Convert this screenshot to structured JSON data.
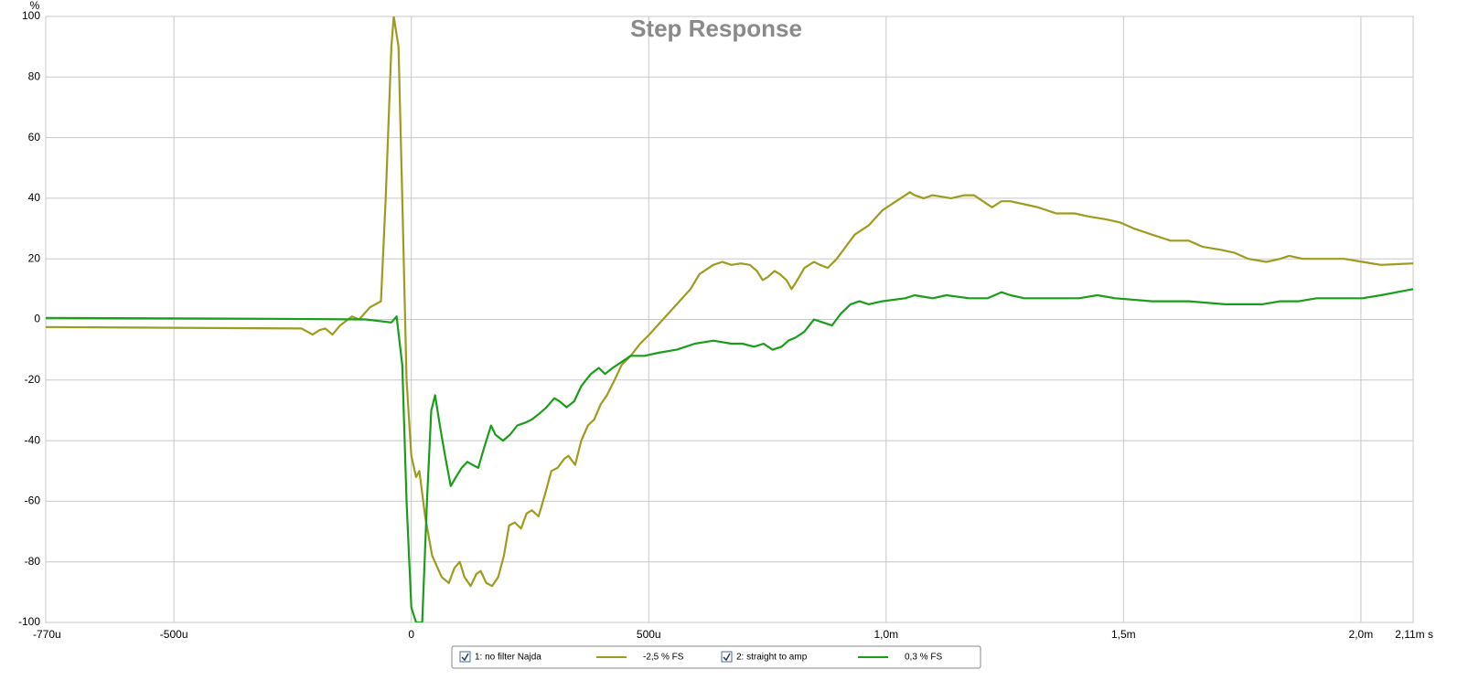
{
  "chart_data": {
    "type": "line",
    "title": "Step Response",
    "y_label": "%",
    "xlim": [
      -770,
      2110
    ],
    "xticks": [
      {
        "value": -770,
        "label": "-770u"
      },
      {
        "value": -500,
        "label": "-500u"
      },
      0,
      {
        "value": 500,
        "label": "500u"
      },
      {
        "value": 1000,
        "label": "1,0m"
      },
      {
        "value": 1500,
        "label": "1,5m"
      },
      {
        "value": 2000,
        "label": "2,0m"
      },
      {
        "value": 2110,
        "label": "2,11m s"
      }
    ],
    "ylim": [
      -100,
      100
    ],
    "yticks": [
      -100,
      -80,
      -60,
      -40,
      -20,
      0,
      20,
      40,
      60,
      80,
      100
    ],
    "grid": true,
    "series": [
      {
        "name": "1: no filter Najda",
        "level": "-2,5 % FS",
        "color": "#9c9c1e",
        "x": [
          -770,
          -231,
          -208,
          -193,
          -181,
          -166,
          -150,
          -125,
          -110,
          -87,
          -64,
          -54,
          -42,
          -37,
          -27,
          -19,
          -10,
          0,
          10,
          17,
          29,
          44,
          64,
          79,
          91,
          102,
          112,
          125,
          137,
          146,
          158,
          170,
          183,
          195,
          206,
          218,
          231,
          243,
          254,
          268,
          281,
          295,
          308,
          322,
          331,
          345,
          358,
          372,
          385,
          399,
          412,
          428,
          443,
          462,
          482,
          501,
          530,
          559,
          588,
          607,
          636,
          655,
          674,
          694,
          713,
          728,
          740,
          751,
          765,
          776,
          790,
          801,
          813,
          828,
          848,
          861,
          877,
          896,
          915,
          934,
          963,
          992,
          1021,
          1050,
          1060,
          1079,
          1098,
          1137,
          1165,
          1185,
          1204,
          1223,
          1243,
          1262,
          1291,
          1320,
          1358,
          1397,
          1426,
          1464,
          1493,
          1522,
          1560,
          1599,
          1637,
          1666,
          1705,
          1734,
          1763,
          1801,
          1830,
          1849,
          1878,
          1907,
          1936,
          1965,
          2003,
          2042,
          2110
        ],
        "values": [
          -2.5,
          -3,
          -5,
          -3.5,
          -3,
          -5,
          -2,
          1,
          0,
          4,
          6,
          40,
          90,
          100,
          90,
          40,
          -20,
          -45,
          -52,
          -50,
          -65,
          -78,
          -85,
          -87,
          -82,
          -80,
          -85,
          -88,
          -84,
          -83,
          -87,
          -88,
          -85,
          -78,
          -68,
          -67,
          -69,
          -64,
          -63,
          -65,
          -58,
          -50,
          -49,
          -46,
          -45,
          -48,
          -40,
          -35,
          -33,
          -28,
          -25,
          -20,
          -15,
          -12,
          -8,
          -5,
          0,
          5,
          10,
          15,
          18,
          19,
          18,
          18.5,
          18,
          16,
          13,
          14,
          16,
          15,
          13,
          10,
          13,
          17,
          19,
          18,
          17,
          20,
          24,
          28,
          31,
          36,
          39,
          42,
          41,
          40,
          41,
          40,
          41,
          41,
          39,
          37,
          39,
          39,
          38,
          37,
          35,
          35,
          34,
          33,
          32,
          30,
          28,
          26,
          26,
          24,
          23,
          22,
          20,
          19,
          20,
          21,
          20,
          20,
          20,
          20,
          19,
          18,
          18.5
        ]
      },
      {
        "name": "2: straight to amp",
        "level": "0,3 % FS",
        "color": "#1a9e1a",
        "x": [
          -770,
          -289,
          -96,
          -42,
          -31,
          -19,
          -10,
          0,
          10,
          23,
          33,
          42,
          50,
          60,
          71,
          83,
          94,
          106,
          118,
          129,
          141,
          154,
          168,
          177,
          193,
          208,
          223,
          241,
          254,
          270,
          285,
          301,
          312,
          327,
          343,
          358,
          378,
          395,
          408,
          424,
          443,
          462,
          491,
          520,
          559,
          597,
          636,
          674,
          697,
          722,
          742,
          761,
          780,
          794,
          809,
          828,
          848,
          867,
          886,
          905,
          925,
          944,
          963,
          992,
          1040,
          1060,
          1098,
          1127,
          1175,
          1214,
          1243,
          1262,
          1291,
          1349,
          1406,
          1445,
          1483,
          1560,
          1637,
          1714,
          1753,
          1792,
          1830,
          1869,
          1907,
          1946,
          2003,
          2042,
          2110
        ],
        "values": [
          0.5,
          0.2,
          0,
          -1,
          1,
          -15,
          -60,
          -95,
          -100,
          -100,
          -60,
          -30,
          -25,
          -35,
          -45,
          -55,
          -52,
          -49,
          -47,
          -48,
          -49,
          -42,
          -35,
          -38,
          -40,
          -38,
          -35,
          -34,
          -33,
          -31,
          -29,
          -26,
          -27,
          -29,
          -27,
          -22,
          -18,
          -16,
          -18,
          -16,
          -14,
          -12,
          -12,
          -11,
          -10,
          -8,
          -7,
          -8,
          -8,
          -9,
          -8,
          -10,
          -9,
          -7,
          -6,
          -4,
          0,
          -1,
          -2,
          2,
          5,
          6,
          5,
          6,
          7,
          8,
          7,
          8,
          7,
          7,
          9,
          8,
          7,
          7,
          7,
          8,
          7,
          6,
          6,
          5,
          5,
          5,
          6,
          6,
          7,
          7,
          7,
          8,
          10
        ]
      }
    ]
  }
}
